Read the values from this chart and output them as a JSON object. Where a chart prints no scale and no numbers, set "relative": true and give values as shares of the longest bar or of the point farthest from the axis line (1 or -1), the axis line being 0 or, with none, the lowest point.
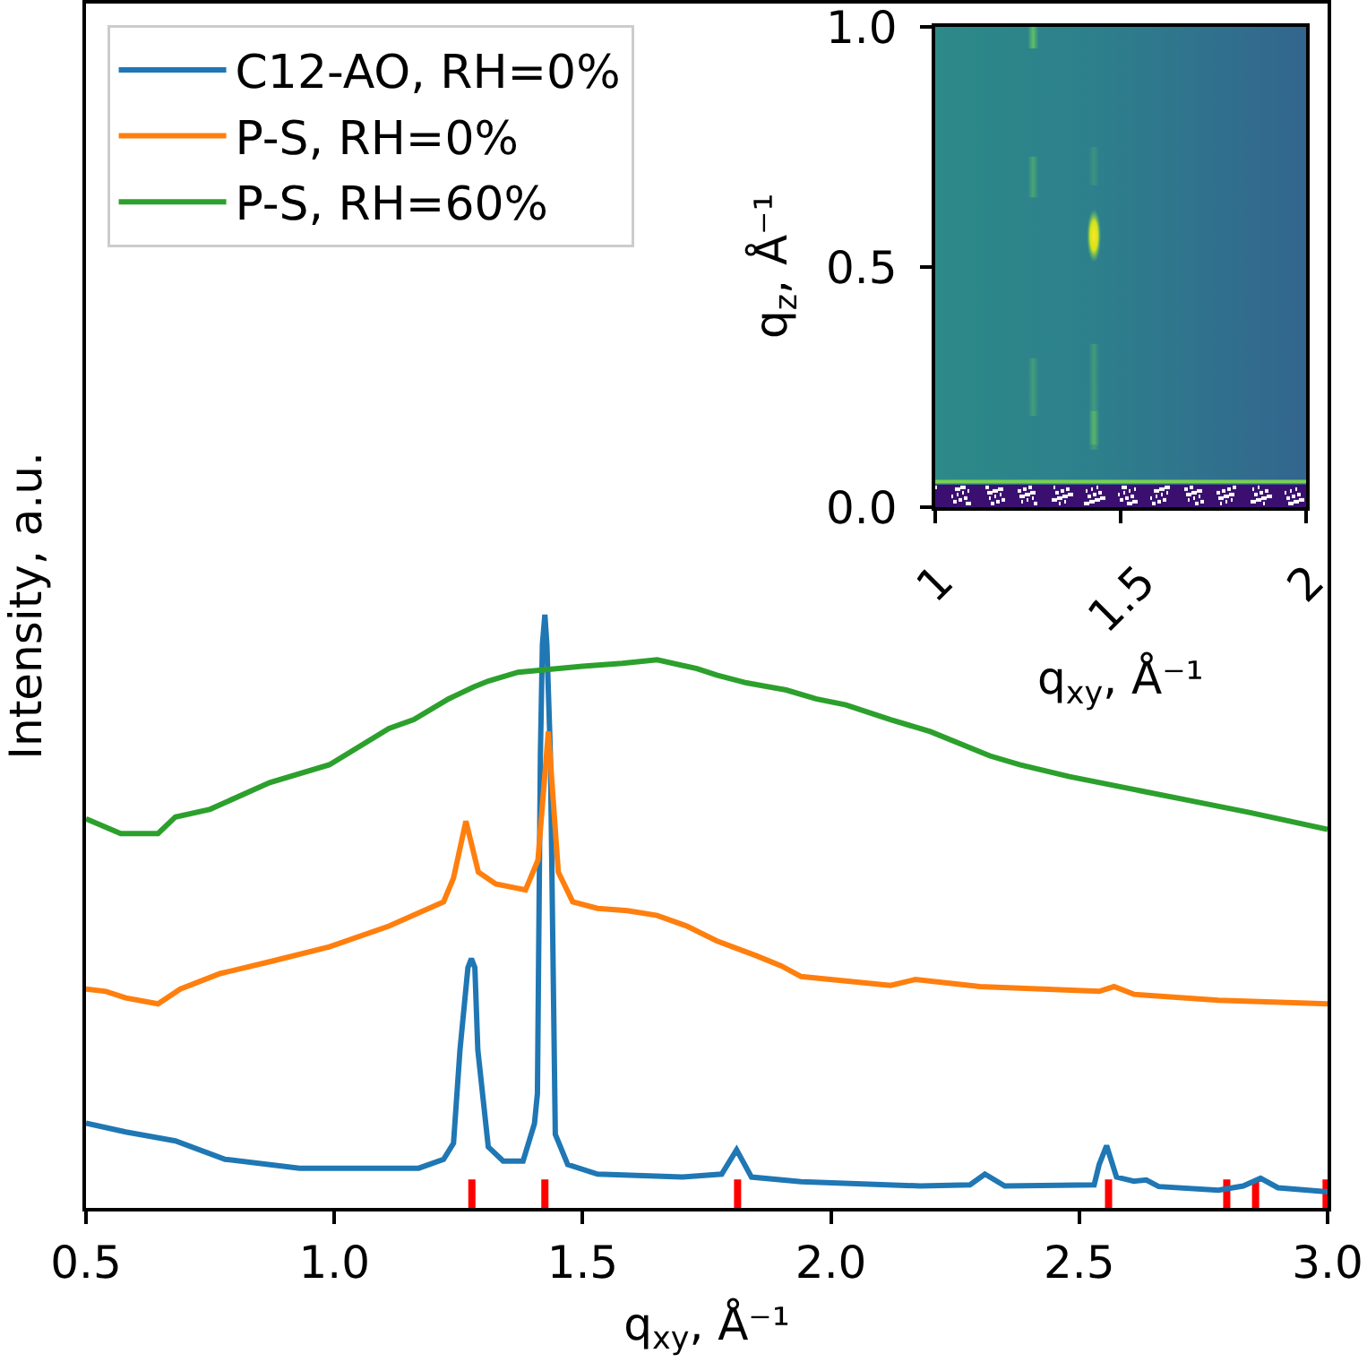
{
  "chart_data": [
    {
      "type": "line",
      "xlabel": "q$_{xy}$, Å⁻¹",
      "ylabel": "Intensity, a.u.",
      "relative": true,
      "legend": "top left",
      "xlim": [
        0.5,
        3
      ],
      "xticks": [
        0.5,
        {
          "value": 1,
          "label": "1.0"
        },
        1.5,
        {
          "value": 2,
          "label": "2.0"
        },
        2.5,
        {
          "value": 3,
          "label": "3.0"
        }
      ],
      "series": [
        {
          "name": "C12-AO, RH=0%",
          "color": "#1f77b4",
          "x": [
            0.5,
            0.58,
            0.68,
            0.78,
            0.93,
            1.17,
            1.22,
            1.24,
            1.253,
            1.269,
            1.276,
            1.283,
            1.289,
            1.31,
            1.34,
            1.38,
            1.403,
            1.409,
            1.415,
            1.419,
            1.424,
            1.428,
            1.435,
            1.445,
            1.47,
            1.53,
            1.7,
            1.78,
            1.81,
            1.84,
            1.94,
            2.18,
            2.28,
            2.31,
            2.35,
            2.53,
            2.54,
            2.555,
            2.575,
            2.61,
            2.635,
            2.66,
            2.78,
            2.83,
            2.865,
            2.9,
            3
          ],
          "values": [
            0.143,
            0.128,
            0.113,
            0.082,
            0.067,
            0.067,
            0.082,
            0.109,
            0.266,
            0.405,
            0.42,
            0.405,
            0.266,
            0.103,
            0.079,
            0.079,
            0.142,
            0.193,
            0.767,
            0.95,
            1,
            0.95,
            0.767,
            0.124,
            0.073,
            0.057,
            0.052,
            0.057,
            0.098,
            0.052,
            0.044,
            0.037,
            0.039,
            0.057,
            0.037,
            0.039,
            0.073,
            0.105,
            0.052,
            0.045,
            0.047,
            0.036,
            0.03,
            0.037,
            0.05,
            0.034,
            0.027
          ]
        },
        {
          "name": "P-S, RH=0%",
          "color": "#ff7f0e",
          "x": [
            0.5,
            0.54,
            0.58,
            0.645,
            0.69,
            0.77,
            0.87,
            0.99,
            1.11,
            1.22,
            1.24,
            1.265,
            1.29,
            1.325,
            1.385,
            1.41,
            1.431,
            1.451,
            1.48,
            1.53,
            1.59,
            1.65,
            1.71,
            1.77,
            1.85,
            1.9,
            1.94,
            2.12,
            2.17,
            2.3,
            2.54,
            2.57,
            2.61,
            2.78,
            3
          ],
          "values": [
            0.369,
            0.365,
            0.354,
            0.344,
            0.369,
            0.395,
            0.415,
            0.44,
            0.475,
            0.516,
            0.556,
            0.652,
            0.566,
            0.546,
            0.536,
            0.586,
            0.803,
            0.566,
            0.516,
            0.505,
            0.501,
            0.493,
            0.475,
            0.45,
            0.425,
            0.408,
            0.39,
            0.375,
            0.385,
            0.373,
            0.365,
            0.373,
            0.36,
            0.35,
            0.344
          ]
        },
        {
          "name": "P-S, RH=60%",
          "color": "#2ca02c",
          "x": [
            0.5,
            0.57,
            0.645,
            0.68,
            0.75,
            0.87,
            0.99,
            1.11,
            1.16,
            1.23,
            1.28,
            1.31,
            1.37,
            1.5,
            1.58,
            1.65,
            1.73,
            1.77,
            1.83,
            1.91,
            1.97,
            2.03,
            2.12,
            2.2,
            2.32,
            2.38,
            2.48,
            2.6,
            2.72,
            2.84,
            3
          ],
          "values": [
            0.656,
            0.631,
            0.631,
            0.659,
            0.672,
            0.717,
            0.747,
            0.808,
            0.823,
            0.858,
            0.878,
            0.888,
            0.903,
            0.913,
            0.918,
            0.924,
            0.909,
            0.898,
            0.885,
            0.873,
            0.858,
            0.848,
            0.823,
            0.803,
            0.762,
            0.747,
            0.727,
            0.707,
            0.687,
            0.667,
            0.638
          ]
        },
        {
          "type": "bar",
          "color": "#ff0000",
          "x": [
            1.277,
            1.424,
            1.812,
            2.559,
            2.797,
            2.855,
            2.997
          ],
          "values": [
            0.048,
            0.048,
            0.048,
            0.048,
            0.048,
            0.048,
            0.048
          ]
        }
      ]
    },
    {
      "type": "other",
      "annotations": [
        "1.0",
        "0.5",
        "0.0",
        "1",
        "1.5",
        "2",
        "q$_{xy}$, Å⁻¹",
        "q$_{z}$, Å⁻¹"
      ]
    }
  ]
}
